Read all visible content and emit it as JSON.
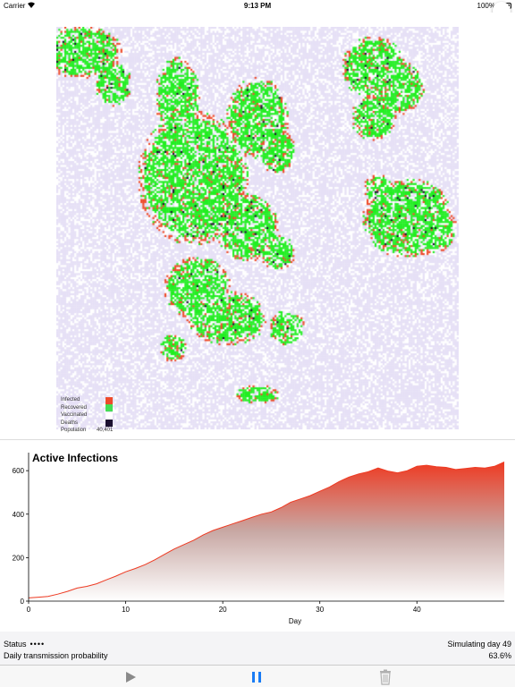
{
  "status_bar": {
    "carrier": "Carrier",
    "time": "9:13 PM",
    "battery": "100%",
    "icons": [
      "wifi-icon",
      "battery-icon"
    ]
  },
  "legend": {
    "items": [
      {
        "label": "Infected",
        "color": "#ee4b2b"
      },
      {
        "label": "Recovered",
        "color": "#44dd55"
      },
      {
        "label": "Vaccinated",
        "color": "#ffffff"
      },
      {
        "label": "Deaths",
        "color": "#1c1030"
      }
    ],
    "population_label": "Population",
    "population_value": "40,401"
  },
  "colors": {
    "susceptible": "#e6e0f6",
    "empty": "#ffffff",
    "infected": "#ee4b2b",
    "recovered": "#22ee22",
    "deaths": "#1c1030",
    "pause_blue": "#1a7cf5"
  },
  "chart_data": {
    "type": "area",
    "title": "Active Infections",
    "xlabel": "Day",
    "ylabel": "",
    "xlim": [
      0,
      49
    ],
    "ylim": [
      0,
      650
    ],
    "x_ticks": [
      0,
      10,
      20,
      30,
      40
    ],
    "y_ticks": [
      0,
      200,
      400,
      600
    ],
    "x": [
      0,
      1,
      2,
      3,
      4,
      5,
      6,
      7,
      8,
      9,
      10,
      11,
      12,
      13,
      14,
      15,
      16,
      17,
      18,
      19,
      20,
      21,
      22,
      23,
      24,
      25,
      26,
      27,
      28,
      29,
      30,
      31,
      32,
      33,
      34,
      35,
      36,
      37,
      38,
      39,
      40,
      41,
      42,
      43,
      44,
      45,
      46,
      47,
      48,
      49
    ],
    "values": [
      15,
      18,
      22,
      32,
      45,
      60,
      68,
      80,
      98,
      115,
      135,
      150,
      168,
      190,
      215,
      240,
      260,
      280,
      305,
      325,
      340,
      355,
      370,
      385,
      400,
      410,
      430,
      455,
      470,
      485,
      505,
      525,
      550,
      570,
      585,
      595,
      612,
      598,
      590,
      600,
      620,
      625,
      618,
      615,
      605,
      610,
      615,
      612,
      620,
      640
    ],
    "color": "#ee3a22"
  },
  "info": {
    "status_label": "Status",
    "status_dots": "••••",
    "status_value": "Simulating day 49",
    "prob_label": "Daily transmission probability",
    "prob_value": "63.6%"
  },
  "toolbar": {
    "items": [
      "play-icon",
      "pause-icon",
      "trash-icon"
    ]
  }
}
